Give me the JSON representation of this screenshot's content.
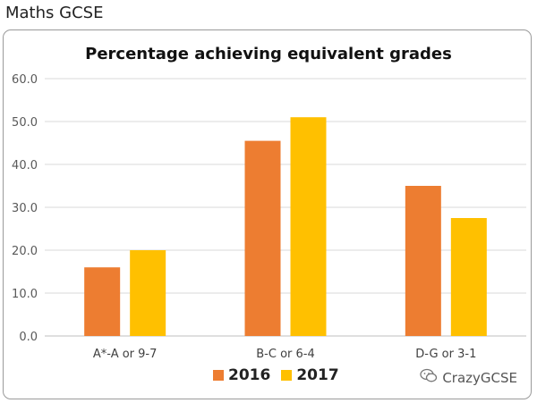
{
  "page": {
    "heading": "Maths GCSE"
  },
  "watermark": {
    "text": "CrazyGCSE",
    "icon": "wechat-icon"
  },
  "colors": {
    "s2016": "#ED7D31",
    "s2017": "#FFC000",
    "grid": "#D9D9D9",
    "axis": "#BFBFBF"
  },
  "chart_data": {
    "type": "bar",
    "title": "Percentage achieving equivalent grades",
    "xlabel": "",
    "ylabel": "",
    "categories": [
      "A*-A or 9-7",
      "B-C or 6-4",
      "D-G or 3-1"
    ],
    "series": [
      {
        "name": "2016",
        "values": [
          16.0,
          45.5,
          35.0
        ]
      },
      {
        "name": "2017",
        "values": [
          20.0,
          51.0,
          27.5
        ]
      }
    ],
    "ylim": [
      0,
      60
    ],
    "yticks": [
      "0.0",
      "10.0",
      "20.0",
      "30.0",
      "40.0",
      "50.0",
      "60.0"
    ],
    "grid": true,
    "legend_position": "bottom"
  }
}
